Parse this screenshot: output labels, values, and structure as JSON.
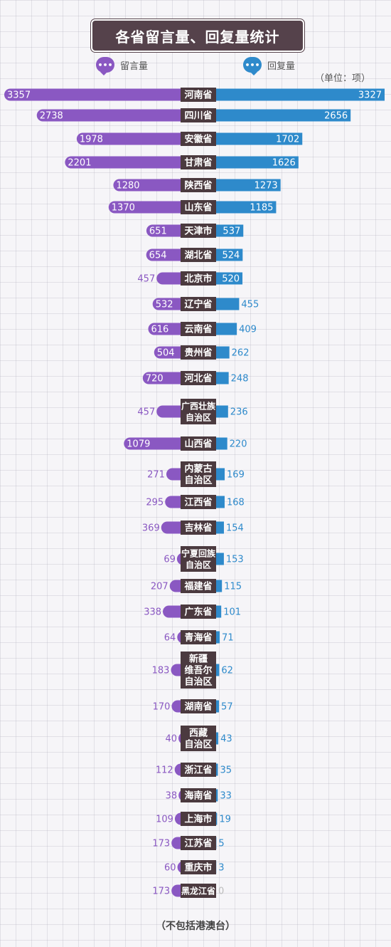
{
  "header": {
    "title": "各省留言量、回复量统计"
  },
  "legend": {
    "left_label": "留言量",
    "right_label": "回复量",
    "unit": "（单位：项）"
  },
  "footnote": "（不包括港澳台）",
  "colors": {
    "messages": "#8a58c2",
    "replies": "#2e8acb",
    "label_bg": "#4b3a3f",
    "title_bg": "#55424b"
  },
  "chart_data": {
    "type": "bar",
    "title": "各省留言量、回复量统计",
    "orientation": "horizontal-diverging",
    "unit": "项",
    "categories": [
      "河南省",
      "四川省",
      "安徽省",
      "甘肃省",
      "陕西省",
      "山东省",
      "天津市",
      "湖北省",
      "北京市",
      "辽宁省",
      "云南省",
      "贵州省",
      "河北省",
      "广西壮族自治区",
      "山西省",
      "内蒙古自治区",
      "江西省",
      "吉林省",
      "宁夏回族自治区",
      "福建省",
      "广东省",
      "青海省",
      "新疆维吾尔自治区",
      "湖南省",
      "西藏自治区",
      "浙江省",
      "海南省",
      "上海市",
      "江苏省",
      "重庆市",
      "黑龙江省"
    ],
    "category_lines": [
      [
        "河南省"
      ],
      [
        "四川省"
      ],
      [
        "安徽省"
      ],
      [
        "甘肃省"
      ],
      [
        "陕西省"
      ],
      [
        "山东省"
      ],
      [
        "天津市"
      ],
      [
        "湖北省"
      ],
      [
        "北京市"
      ],
      [
        "辽宁省"
      ],
      [
        "云南省"
      ],
      [
        "贵州省"
      ],
      [
        "河北省"
      ],
      [
        "广西壮族",
        "自治区"
      ],
      [
        "山西省"
      ],
      [
        "内蒙古",
        "自治区"
      ],
      [
        "江西省"
      ],
      [
        "吉林省"
      ],
      [
        "宁夏回族",
        "自治区"
      ],
      [
        "福建省"
      ],
      [
        "广东省"
      ],
      [
        "青海省"
      ],
      [
        "新疆",
        "维吾尔",
        "自治区"
      ],
      [
        "湖南省"
      ],
      [
        "西藏",
        "自治区"
      ],
      [
        "浙江省"
      ],
      [
        "海南省"
      ],
      [
        "上海市"
      ],
      [
        "江苏省"
      ],
      [
        "重庆市"
      ],
      [
        "黑龙江省"
      ]
    ],
    "series": [
      {
        "name": "留言量",
        "values": [
          3357,
          2738,
          1978,
          2201,
          1280,
          1370,
          651,
          654,
          457,
          532,
          616,
          504,
          720,
          457,
          1079,
          271,
          295,
          369,
          69,
          207,
          338,
          64,
          183,
          170,
          40,
          112,
          38,
          109,
          173,
          60,
          173
        ]
      },
      {
        "name": "回复量",
        "values": [
          3327,
          2656,
          1702,
          1626,
          1273,
          1185,
          537,
          524,
          520,
          455,
          409,
          262,
          248,
          236,
          220,
          169,
          168,
          154,
          153,
          115,
          101,
          71,
          62,
          57,
          43,
          35,
          33,
          19,
          5,
          3,
          0
        ]
      }
    ]
  }
}
